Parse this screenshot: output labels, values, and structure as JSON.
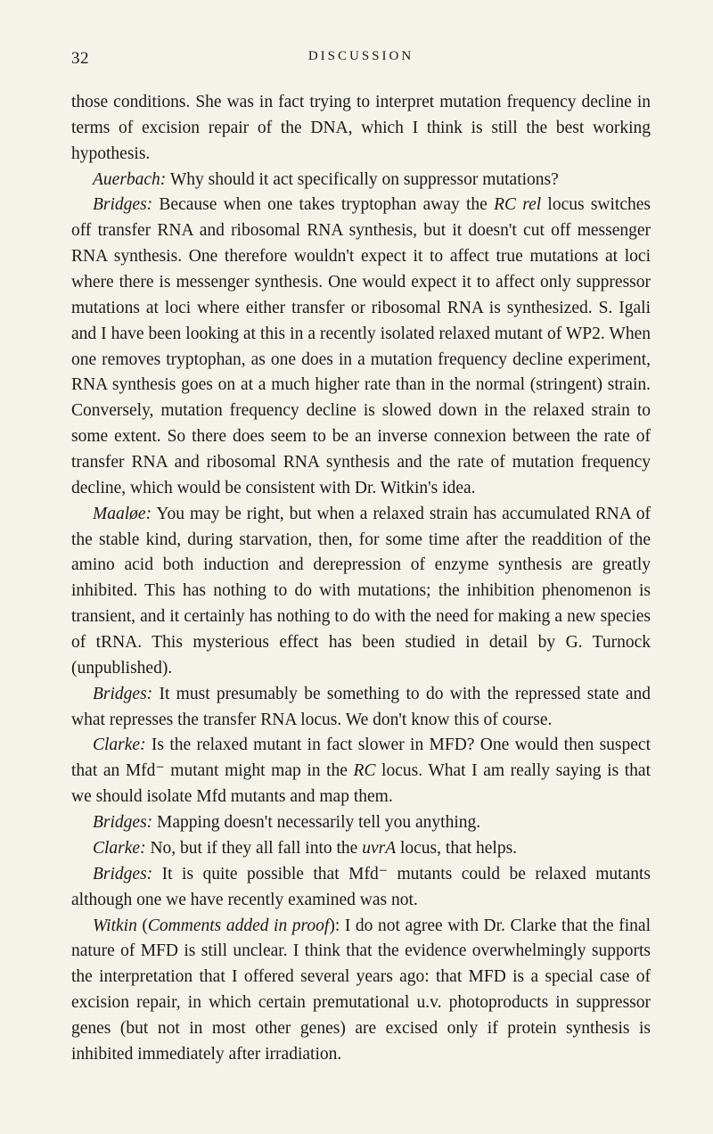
{
  "header": {
    "page_number": "32",
    "title": "DISCUSSION"
  },
  "paragraphs": [
    {
      "indent": false,
      "segments": [
        {
          "text": "those conditions. She was in fact trying to interpret mutation frequency decline in terms of excision repair of the DNA, which I think is still the best working hypothesis.",
          "italic": false
        }
      ]
    },
    {
      "indent": true,
      "segments": [
        {
          "text": "Auerbach:",
          "italic": true
        },
        {
          "text": " Why should it act specifically on suppressor mutations?",
          "italic": false
        }
      ]
    },
    {
      "indent": true,
      "segments": [
        {
          "text": "Bridges:",
          "italic": true
        },
        {
          "text": " Because when one takes tryptophan away the ",
          "italic": false
        },
        {
          "text": "RC rel",
          "italic": true
        },
        {
          "text": " locus switches off transfer RNA and ribosomal RNA synthesis, but it doesn't cut off messenger RNA synthesis. One therefore wouldn't expect it to affect true mutations at loci where there is messenger synthesis. One would expect it to affect only suppressor mutations at loci where either transfer or ribosomal RNA is synthesized. S. Igali and I have been looking at this in a recently isolated relaxed mutant of WP2. When one removes tryptophan, as one does in a mutation frequency decline experiment, RNA synthesis goes on at a much higher rate than in the normal (stringent) strain. Conversely, mutation frequency decline is slowed down in the relaxed strain to some extent. So there does seem to be an inverse connexion between the rate of transfer RNA and ribosomal RNA synthesis and the rate of mutation frequency decline, which would be consistent with Dr. Witkin's idea.",
          "italic": false
        }
      ]
    },
    {
      "indent": true,
      "segments": [
        {
          "text": "Maaløe:",
          "italic": true
        },
        {
          "text": " You may be right, but when a relaxed strain has accumulated RNA of the stable kind, during starvation, then, for some time after the readdition of the amino acid both induction and derepression of enzyme synthesis are greatly inhibited. This has nothing to do with mutations; the inhibition phenomenon is transient, and it certainly has nothing to do with the need for making a new species of tRNA. This mysterious effect has been studied in detail by G. Turnock (unpublished).",
          "italic": false
        }
      ]
    },
    {
      "indent": true,
      "segments": [
        {
          "text": "Bridges:",
          "italic": true
        },
        {
          "text": " It must presumably be something to do with the repressed state and what represses the transfer RNA locus. We don't know this of course.",
          "italic": false
        }
      ]
    },
    {
      "indent": true,
      "segments": [
        {
          "text": "Clarke:",
          "italic": true
        },
        {
          "text": " Is the relaxed mutant in fact slower in MFD? One would then suspect that an Mfd⁻ mutant might map in the ",
          "italic": false
        },
        {
          "text": "RC",
          "italic": true
        },
        {
          "text": " locus. What I am really saying is that we should isolate Mfd mutants and map them.",
          "italic": false
        }
      ]
    },
    {
      "indent": true,
      "segments": [
        {
          "text": "Bridges:",
          "italic": true
        },
        {
          "text": " Mapping doesn't necessarily tell you anything.",
          "italic": false
        }
      ]
    },
    {
      "indent": true,
      "segments": [
        {
          "text": "Clarke:",
          "italic": true
        },
        {
          "text": " No, but if they all fall into the ",
          "italic": false
        },
        {
          "text": "uvrA",
          "italic": true
        },
        {
          "text": " locus, that helps.",
          "italic": false
        }
      ]
    },
    {
      "indent": true,
      "segments": [
        {
          "text": "Bridges:",
          "italic": true
        },
        {
          "text": " It is quite possible that Mfd⁻ mutants could be relaxed mutants although one we have recently examined was not.",
          "italic": false
        }
      ]
    },
    {
      "indent": true,
      "segments": [
        {
          "text": "Witkin",
          "italic": true
        },
        {
          "text": " (",
          "italic": false
        },
        {
          "text": "Comments added in proof",
          "italic": true
        },
        {
          "text": "): I do not agree with Dr. Clarke that the final nature of MFD is still unclear. I think that the evidence overwhelmingly supports the interpretation that I offered several years ago: that MFD is a special case of excision repair, in which certain premutational u.v. photoproducts in suppressor genes (but not in most other genes) are excised only if protein synthesis is inhibited immediately after irradiation.",
          "italic": false
        }
      ]
    }
  ]
}
